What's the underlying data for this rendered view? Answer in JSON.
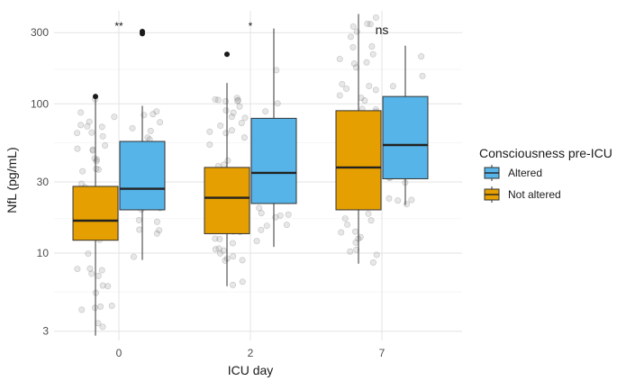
{
  "chart_data": {
    "type": "boxplot",
    "title": "",
    "xlabel": "ICU day",
    "ylabel": "NfL (pg/mL)",
    "y_scale": "log10",
    "ylim": [
      2.6,
      420
    ],
    "y_ticks": [
      3,
      10,
      30,
      100,
      300
    ],
    "categories": [
      "0",
      "2",
      "7"
    ],
    "legend": {
      "title": "Consciousness pre-ICU",
      "placement": "right",
      "entries": [
        {
          "name": "Altered",
          "color": "#56B4E9"
        },
        {
          "name": "Not altered",
          "color": "#E69F00"
        }
      ]
    },
    "series": [
      {
        "name": "Not altered",
        "color": "#E69F00",
        "boxes": [
          {
            "category": "0",
            "whisker_low": 2.8,
            "q1": 12.2,
            "median": 16.5,
            "q3": 28,
            "whisker_high": 108,
            "outliers": [
              112
            ]
          },
          {
            "category": "2",
            "whisker_low": 6,
            "q1": 13.5,
            "median": 23.5,
            "q3": 37.5,
            "whisker_high": 138,
            "outliers": [
              215
            ]
          },
          {
            "category": "7",
            "whisker_low": 8.5,
            "q1": 19.5,
            "median": 37.5,
            "q3": 90,
            "whisker_high": 400,
            "outliers": []
          }
        ]
      },
      {
        "name": "Altered",
        "color": "#56B4E9",
        "boxes": [
          {
            "category": "0",
            "whisker_low": 9,
            "q1": 19.5,
            "median": 27,
            "q3": 56,
            "whisker_high": 97,
            "outliers": [
              295,
              305
            ]
          },
          {
            "category": "2",
            "whisker_low": 11,
            "q1": 21.5,
            "median": 34.5,
            "q3": 80,
            "whisker_high": 320,
            "outliers": []
          },
          {
            "category": "7",
            "whisker_low": 21,
            "q1": 31.5,
            "median": 53,
            "q3": 112,
            "whisker_high": 245,
            "outliers": []
          }
        ]
      }
    ],
    "significance": [
      {
        "category": "0",
        "label": "**"
      },
      {
        "category": "2",
        "label": "*"
      },
      {
        "category": "7",
        "label": "ns"
      }
    ],
    "grid": true
  }
}
